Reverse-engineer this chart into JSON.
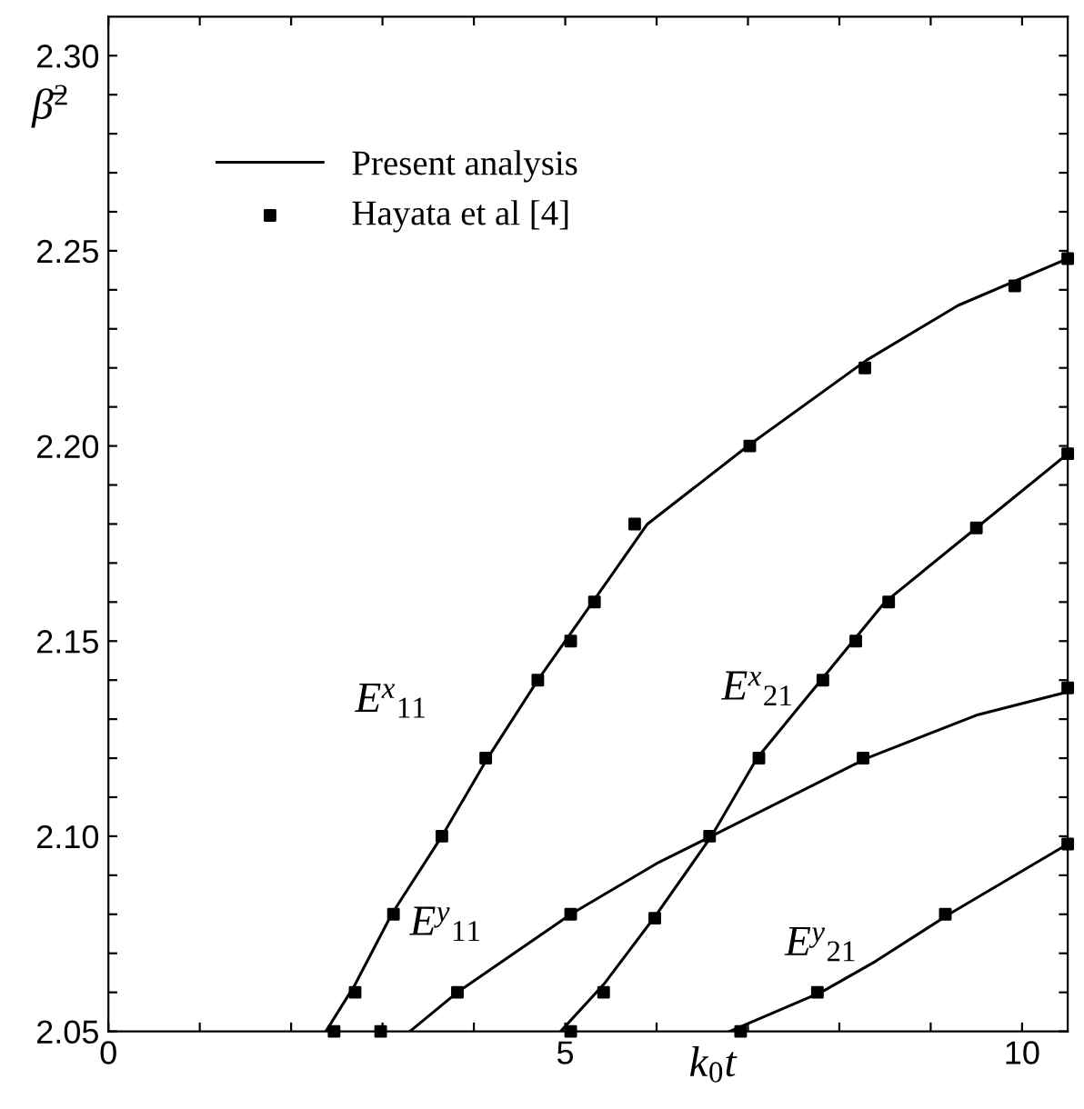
{
  "chart_data": {
    "type": "line",
    "xlabel": "k$_{0}$t",
    "ylabel": "β̄$^{2}$",
    "xlim": [
      0,
      10.5
    ],
    "ylim": [
      2.05,
      2.31
    ],
    "xticks": [
      0,
      {
        "value": 1,
        "label": null
      },
      {
        "value": 2,
        "label": null
      },
      {
        "value": 3,
        "label": null
      },
      {
        "value": 4,
        "label": null
      },
      5,
      {
        "value": 6,
        "label": null
      },
      {
        "value": 7,
        "label": null
      },
      {
        "value": 8,
        "label": null
      },
      {
        "value": 9,
        "label": null
      },
      10
    ],
    "yticks": [
      {
        "value": 2.05,
        "label": "2.05"
      },
      {
        "value": 2.06,
        "label": null
      },
      {
        "value": 2.07,
        "label": null
      },
      {
        "value": 2.08,
        "label": null
      },
      {
        "value": 2.09,
        "label": null
      },
      {
        "value": 2.1,
        "label": "2.10"
      },
      {
        "value": 2.11,
        "label": null
      },
      {
        "value": 2.12,
        "label": null
      },
      {
        "value": 2.13,
        "label": null
      },
      {
        "value": 2.14,
        "label": null
      },
      {
        "value": 2.15,
        "label": "2.15"
      },
      {
        "value": 2.16,
        "label": null
      },
      {
        "value": 2.17,
        "label": null
      },
      {
        "value": 2.18,
        "label": null
      },
      {
        "value": 2.19,
        "label": null
      },
      {
        "value": 2.2,
        "label": "2.20"
      },
      {
        "value": 2.21,
        "label": null
      },
      {
        "value": 2.22,
        "label": null
      },
      {
        "value": 2.23,
        "label": null
      },
      {
        "value": 2.24,
        "label": null
      },
      {
        "value": 2.25,
        "label": "2.25"
      },
      {
        "value": 2.26,
        "label": null
      },
      {
        "value": 2.27,
        "label": null
      },
      {
        "value": 2.28,
        "label": null
      },
      {
        "value": 2.29,
        "label": null
      },
      {
        "value": 2.3,
        "label": "2.30"
      }
    ],
    "grid": false,
    "legend": "top left",
    "series": [
      {
        "name": "Present analysis",
        "marker": "none",
        "line_style": "solid",
        "color": "#000000",
        "x": [
          2.38,
          2.7,
          3.1,
          3.65,
          4.15,
          4.7,
          5.3,
          5.9,
          7.0,
          8.3,
          9.3,
          10.5
        ],
        "values": [
          2.05,
          2.062,
          2.08,
          2.1,
          2.12,
          2.14,
          2.16,
          2.18,
          2.2,
          2.222,
          2.236,
          2.248
        ]
      },
      {
        "marker": "none",
        "line_style": "solid",
        "color": "#000000",
        "x": [
          3.3,
          3.82,
          5.06,
          6.0,
          6.6,
          8.3,
          9.5,
          10.5
        ],
        "values": [
          2.05,
          2.06,
          2.08,
          2.093,
          2.1,
          2.12,
          2.131,
          2.137
        ]
      },
      {
        "marker": "none",
        "line_style": "solid",
        "color": "#000000",
        "x": [
          4.95,
          5.42,
          6.0,
          6.6,
          7.1,
          7.8,
          8.5,
          9.5,
          10.5
        ],
        "values": [
          2.05,
          2.062,
          2.08,
          2.1,
          2.12,
          2.14,
          2.16,
          2.179,
          2.198
        ]
      },
      {
        "marker": "none",
        "line_style": "solid",
        "color": "#000000",
        "x": [
          6.8,
          7.8,
          8.4,
          9.2,
          10.5
        ],
        "values": [
          2.05,
          2.06,
          2.068,
          2.08,
          2.098
        ]
      },
      {
        "name": "Hayata et al [4]",
        "type": "scatter",
        "marker": "square",
        "color": "#000000",
        "x": [
          2.47,
          2.7,
          3.12,
          3.65,
          4.13,
          4.7,
          5.06,
          5.32,
          5.76,
          7.02,
          8.28,
          9.92,
          10.5
        ],
        "values": [
          2.05,
          2.06,
          2.08,
          2.1,
          2.12,
          2.14,
          2.15,
          2.16,
          2.18,
          2.2,
          2.22,
          2.241,
          2.248
        ]
      },
      {
        "type": "scatter",
        "marker": "square",
        "color": "#000000",
        "x": [
          2.98,
          3.82,
          5.06,
          6.58,
          8.26,
          10.5
        ],
        "values": [
          2.05,
          2.06,
          2.08,
          2.1,
          2.12,
          2.138
        ]
      },
      {
        "type": "scatter",
        "marker": "square",
        "color": "#000000",
        "x": [
          5.06,
          5.42,
          5.98,
          7.12,
          7.82,
          8.18,
          8.54,
          9.5,
          10.5
        ],
        "values": [
          2.05,
          2.06,
          2.079,
          2.12,
          2.14,
          2.15,
          2.16,
          2.179,
          2.198
        ]
      },
      {
        "type": "scatter",
        "marker": "square",
        "color": "#000000",
        "x": [
          6.92,
          7.76,
          9.16,
          10.5
        ],
        "values": [
          2.05,
          2.06,
          2.08,
          2.098
        ]
      }
    ],
    "annotations": [
      "E$^{x}$$_{11}$",
      "E$^{x}$$_{21}$",
      "E$^{y}$$_{11}$",
      "E$^{y}$$_{21}$"
    ]
  }
}
